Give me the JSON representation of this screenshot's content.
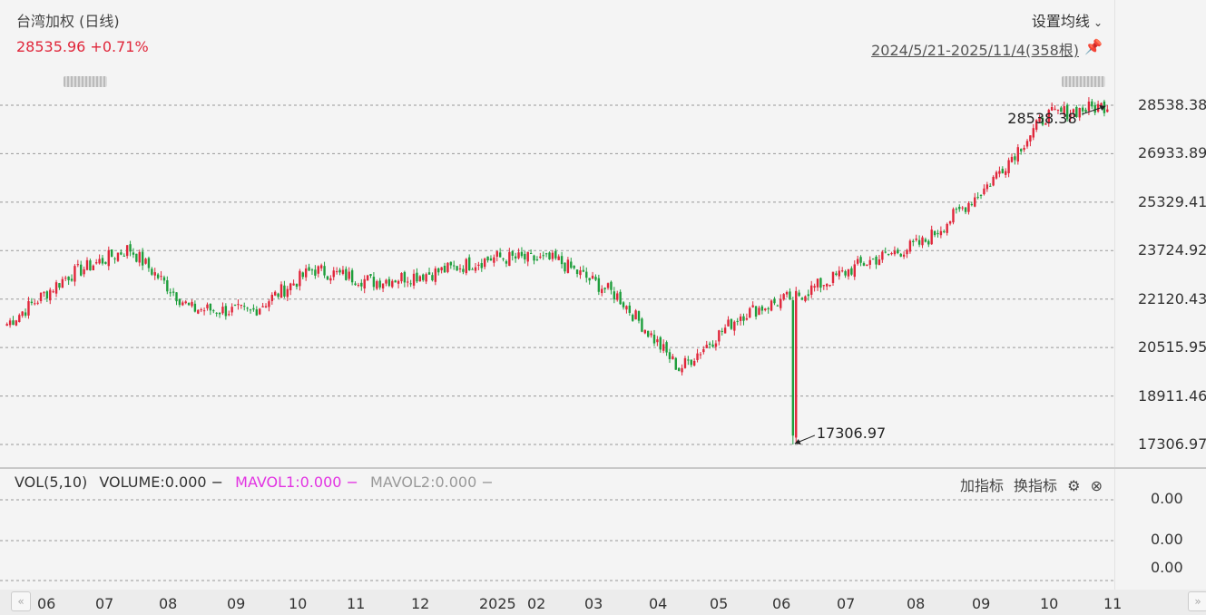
{
  "header": {
    "title": "台湾加权 (日线)",
    "price_change": "28535.96 +0.71%",
    "set_ma_label": "设置均线",
    "range_label": "2024/5/21-2025/11/4(358根)"
  },
  "volume_panel": {
    "vol_label": "VOL(5,10)",
    "volume": "VOLUME:0.000 −",
    "mavol1": "MAVOL1:0.000 −",
    "mavol2": "MAVOL2:0.000 −",
    "add_indicator": "加指标",
    "switch_indicator": "换指标",
    "y_ticks": [
      "0.00",
      "0.00",
      "0.00"
    ]
  },
  "colors": {
    "up": "#e0263a",
    "down": "#1e9e3c",
    "grid": "#999999"
  },
  "chart_data": {
    "type": "candlestick",
    "title": "台湾加权 (日线)",
    "y_ticks": [
      "28538.38",
      "26933.89",
      "25329.41",
      "23724.92",
      "22120.43",
      "20515.95",
      "18911.46",
      "17306.97"
    ],
    "ylim": [
      17306.97,
      28538.38
    ],
    "x_ticks": [
      "06",
      "07",
      "08",
      "09",
      "10",
      "11",
      "12",
      "2025",
      "02",
      "03",
      "04",
      "05",
      "06",
      "07",
      "08",
      "09",
      "10",
      "11"
    ],
    "high_label": "28538.38",
    "low_label": "17306.97",
    "close_series_approx": [
      {
        "month": "2024-05",
        "close": 21300
      },
      {
        "month": "2024-06",
        "close": 22900
      },
      {
        "month": "2024-07",
        "close": 23800
      },
      {
        "month": "2024-08",
        "close": 21800
      },
      {
        "month": "2024-09",
        "close": 21700
      },
      {
        "month": "2024-10",
        "close": 23100
      },
      {
        "month": "2024-11",
        "close": 22700
      },
      {
        "month": "2024-12",
        "close": 23000
      },
      {
        "month": "2025-01",
        "close": 23500
      },
      {
        "month": "2025-02",
        "close": 23400
      },
      {
        "month": "2025-03",
        "close": 22200
      },
      {
        "month": "2025-04",
        "close": 19800
      },
      {
        "month": "2025-05",
        "close": 21600
      },
      {
        "month": "2025-06",
        "close": 22300
      },
      {
        "month": "2025-07",
        "close": 23300
      },
      {
        "month": "2025-08",
        "close": 24000
      },
      {
        "month": "2025-09",
        "close": 25800
      },
      {
        "month": "2025-10",
        "close": 28200
      },
      {
        "month": "2025-11",
        "close": 28536
      }
    ]
  }
}
